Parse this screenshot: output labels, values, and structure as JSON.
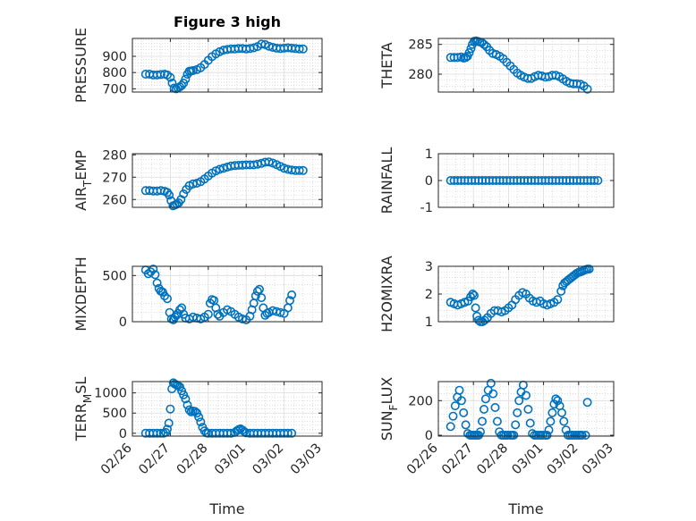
{
  "chart_data": [
    {
      "type": "scatter",
      "id": "pressure",
      "title": "Figure 3 high",
      "ylabel": "PRESSURE",
      "ylabel_sub": "",
      "ylabel_tail": "",
      "xlabel": "",
      "ylim": [
        680,
        1010
      ],
      "yticks": [
        700,
        800,
        900
      ],
      "yticklabels": [
        "700",
        "800",
        "900"
      ],
      "xlim": [
        "02/26",
        "03/03"
      ],
      "xticks": [
        "02/26",
        "02/27",
        "02/28",
        "03/01",
        "03/02",
        "03/03"
      ],
      "xticklabels": [],
      "x": [
        0.35,
        0.45,
        0.55,
        0.65,
        0.75,
        0.85,
        0.92,
        1.0,
        1.05,
        1.1,
        1.15,
        1.2,
        1.25,
        1.3,
        1.35,
        1.4,
        1.45,
        1.5,
        1.55,
        1.6,
        1.7,
        1.8,
        1.9,
        2.0,
        2.1,
        2.2,
        2.3,
        2.4,
        2.5,
        2.6,
        2.7,
        2.8,
        2.9,
        3.0,
        3.1,
        3.2,
        3.3,
        3.4,
        3.5,
        3.6,
        3.7,
        3.8,
        3.9,
        4.0,
        4.1,
        4.2,
        4.3,
        4.4,
        4.5
      ],
      "y": [
        790,
        790,
        785,
        785,
        788,
        790,
        785,
        770,
        735,
        705,
        700,
        706,
        712,
        720,
        735,
        760,
        790,
        808,
        810,
        812,
        818,
        830,
        850,
        875,
        898,
        915,
        928,
        938,
        942,
        945,
        945,
        948,
        948,
        945,
        948,
        952,
        960,
        975,
        972,
        962,
        955,
        950,
        948,
        950,
        952,
        950,
        948,
        945,
        945
      ]
    },
    {
      "type": "scatter",
      "id": "theta",
      "title": "",
      "ylabel": "THETA",
      "ylabel_sub": "",
      "ylabel_tail": "",
      "xlabel": "",
      "ylim": [
        277,
        286
      ],
      "yticks": [
        280,
        285
      ],
      "yticklabels": [
        "280",
        "285"
      ],
      "xlim": [
        "02/26",
        "03/03"
      ],
      "xticks": [
        "02/26",
        "02/27",
        "02/28",
        "03/01",
        "03/02",
        "03/03"
      ],
      "xticklabels": [],
      "x": [
        0.35,
        0.45,
        0.55,
        0.65,
        0.72,
        0.78,
        0.83,
        0.88,
        0.93,
        0.97,
        1.02,
        1.07,
        1.12,
        1.18,
        1.24,
        1.3,
        1.38,
        1.46,
        1.55,
        1.65,
        1.75,
        1.85,
        1.95,
        2.05,
        2.15,
        2.25,
        2.35,
        2.45,
        2.55,
        2.65,
        2.75,
        2.85,
        2.95,
        3.05,
        3.15,
        3.25,
        3.35,
        3.45,
        3.55,
        3.65,
        3.75,
        3.85,
        3.95,
        4.05,
        4.15,
        4.25
      ],
      "y": [
        282.8,
        282.8,
        282.8,
        282.9,
        282.7,
        282.8,
        283.0,
        283.6,
        284.3,
        285.0,
        285.5,
        285.6,
        285.5,
        285.4,
        285.3,
        285.0,
        284.6,
        284.0,
        283.5,
        283.3,
        283.0,
        282.6,
        282.0,
        281.4,
        280.8,
        280.2,
        279.8,
        279.5,
        279.3,
        279.3,
        279.6,
        279.8,
        279.7,
        279.5,
        279.6,
        279.8,
        279.8,
        279.6,
        279.2,
        278.8,
        278.5,
        278.4,
        278.4,
        278.3,
        278.0,
        277.5
      ]
    },
    {
      "type": "scatter",
      "id": "air-temp",
      "title": "",
      "ylabel": "AIR",
      "ylabel_sub": "T",
      "ylabel_tail": "EMP",
      "xlabel": "",
      "ylim": [
        256.5,
        280.5
      ],
      "yticks": [
        260,
        270,
        280
      ],
      "yticklabels": [
        "260",
        "270",
        "280"
      ],
      "xlim": [
        "02/26",
        "03/03"
      ],
      "xticks": [
        "02/26",
        "02/27",
        "02/28",
        "03/01",
        "03/02",
        "03/03"
      ],
      "xticklabels": [],
      "x": [
        0.35,
        0.45,
        0.55,
        0.65,
        0.75,
        0.85,
        0.92,
        0.97,
        1.02,
        1.07,
        1.12,
        1.17,
        1.22,
        1.28,
        1.35,
        1.42,
        1.5,
        1.6,
        1.7,
        1.8,
        1.9,
        2.0,
        2.1,
        2.2,
        2.3,
        2.4,
        2.5,
        2.6,
        2.7,
        2.8,
        2.9,
        3.0,
        3.1,
        3.2,
        3.3,
        3.4,
        3.5,
        3.6,
        3.7,
        3.8,
        3.9,
        4.0,
        4.1,
        4.2,
        4.3,
        4.4,
        4.5
      ],
      "y": [
        264,
        264,
        263.8,
        263.8,
        264,
        263.7,
        263.2,
        262,
        259.5,
        257.2,
        257.5,
        258,
        258.5,
        260,
        262.5,
        264.5,
        266.2,
        267,
        267.3,
        268,
        269.2,
        270.5,
        271.8,
        272.8,
        273.5,
        274,
        274.5,
        275,
        275.2,
        275.3,
        275.4,
        275.5,
        275.5,
        275.5,
        275.8,
        276.2,
        276.7,
        276.8,
        276.3,
        275.6,
        274.8,
        274,
        273.5,
        273.2,
        273,
        273,
        273
      ]
    },
    {
      "type": "scatter",
      "id": "rainfall",
      "title": "",
      "ylabel": "RAINFALL",
      "ylabel_sub": "",
      "ylabel_tail": "",
      "xlabel": "",
      "ylim": [
        -1,
        1
      ],
      "yticks": [
        -1,
        0,
        1
      ],
      "yticklabels": [
        "-1",
        "0",
        "1"
      ],
      "xlim": [
        "02/26",
        "03/03"
      ],
      "xticks": [
        "02/26",
        "02/27",
        "02/28",
        "03/01",
        "03/02",
        "03/03"
      ],
      "xticklabels": [],
      "x": [
        0.35,
        0.45,
        0.55,
        0.65,
        0.75,
        0.85,
        0.95,
        1.05,
        1.15,
        1.25,
        1.35,
        1.45,
        1.55,
        1.65,
        1.75,
        1.85,
        1.95,
        2.05,
        2.15,
        2.25,
        2.35,
        2.45,
        2.55,
        2.65,
        2.75,
        2.85,
        2.95,
        3.05,
        3.15,
        3.25,
        3.35,
        3.45,
        3.55,
        3.65,
        3.75,
        3.85,
        3.95,
        4.05,
        4.15,
        4.25,
        4.35,
        4.45,
        4.55
      ],
      "y": [
        0,
        0,
        0,
        0,
        0,
        0,
        0,
        0,
        0,
        0,
        0,
        0,
        0,
        0,
        0,
        0,
        0,
        0,
        0,
        0,
        0,
        0,
        0,
        0,
        0,
        0,
        0,
        0,
        0,
        0,
        0,
        0,
        0,
        0,
        0,
        0,
        0,
        0,
        0,
        0,
        0,
        0,
        0
      ]
    },
    {
      "type": "scatter",
      "id": "mixdepth",
      "title": "",
      "ylabel": "MIXDEPTH",
      "ylabel_sub": "",
      "ylabel_tail": "",
      "xlabel": "",
      "ylim": [
        0,
        600
      ],
      "yticks": [
        0,
        500
      ],
      "yticklabels": [
        "0",
        "500"
      ],
      "xlim": [
        "02/26",
        "03/03"
      ],
      "xticks": [
        "02/26",
        "02/27",
        "02/28",
        "03/01",
        "03/02",
        "03/03"
      ],
      "xticklabels": [],
      "x": [
        0.35,
        0.42,
        0.48,
        0.55,
        0.6,
        0.65,
        0.7,
        0.75,
        0.8,
        0.85,
        0.92,
        0.98,
        1.03,
        1.08,
        1.12,
        1.16,
        1.2,
        1.25,
        1.3,
        1.35,
        1.4,
        1.5,
        1.6,
        1.7,
        1.8,
        1.9,
        2.0,
        2.05,
        2.1,
        2.15,
        2.2,
        2.25,
        2.3,
        2.4,
        2.5,
        2.6,
        2.7,
        2.8,
        2.9,
        3.0,
        3.1,
        3.15,
        3.2,
        3.25,
        3.3,
        3.35,
        3.4,
        3.45,
        3.5,
        3.55,
        3.6,
        3.7,
        3.8,
        3.9,
        4.0,
        4.1,
        4.15,
        4.2
      ],
      "y": [
        560,
        520,
        540,
        570,
        510,
        420,
        360,
        330,
        320,
        280,
        250,
        100,
        30,
        20,
        50,
        70,
        90,
        130,
        150,
        80,
        40,
        30,
        50,
        40,
        30,
        50,
        80,
        200,
        240,
        230,
        150,
        80,
        60,
        100,
        130,
        110,
        80,
        50,
        30,
        20,
        60,
        130,
        200,
        280,
        330,
        350,
        260,
        150,
        70,
        90,
        100,
        120,
        110,
        100,
        90,
        150,
        230,
        290
      ]
    },
    {
      "type": "scatter",
      "id": "h2omixra",
      "title": "",
      "ylabel": "H2OMIXRA",
      "ylabel_sub": "",
      "ylabel_tail": "",
      "xlabel": "",
      "ylim": [
        1,
        3
      ],
      "yticks": [
        1,
        2,
        3
      ],
      "yticklabels": [
        "1",
        "2",
        "3"
      ],
      "xlim": [
        "02/26",
        "03/03"
      ],
      "xticks": [
        "02/26",
        "02/27",
        "02/28",
        "03/01",
        "03/02",
        "03/03"
      ],
      "xticklabels": [],
      "x": [
        0.35,
        0.45,
        0.55,
        0.65,
        0.75,
        0.85,
        0.92,
        0.98,
        1.02,
        1.06,
        1.1,
        1.15,
        1.2,
        1.26,
        1.32,
        1.4,
        1.5,
        1.6,
        1.7,
        1.8,
        1.9,
        2.0,
        2.1,
        2.2,
        2.3,
        2.4,
        2.5,
        2.6,
        2.7,
        2.8,
        2.9,
        3.0,
        3.1,
        3.2,
        3.3,
        3.4,
        3.5,
        3.55,
        3.6,
        3.65,
        3.7,
        3.75,
        3.8,
        3.85,
        3.9,
        3.95,
        4.0,
        4.05,
        4.1,
        4.15,
        4.2,
        4.25,
        4.3
      ],
      "y": [
        1.7,
        1.65,
        1.6,
        1.65,
        1.7,
        1.75,
        1.9,
        2.0,
        1.95,
        1.5,
        1.2,
        1.05,
        1.0,
        1.0,
        1.05,
        1.15,
        1.3,
        1.4,
        1.4,
        1.35,
        1.4,
        1.5,
        1.6,
        1.8,
        1.95,
        2.05,
        2.0,
        1.85,
        1.75,
        1.7,
        1.75,
        1.65,
        1.6,
        1.65,
        1.7,
        1.8,
        2.1,
        2.3,
        2.4,
        2.45,
        2.5,
        2.55,
        2.6,
        2.65,
        2.7,
        2.75,
        2.78,
        2.8,
        2.82,
        2.85,
        2.88,
        2.9,
        2.9
      ]
    },
    {
      "type": "scatter",
      "id": "terr-msl",
      "title": "",
      "ylabel": "TERR",
      "ylabel_sub": "M",
      "ylabel_tail": "SL",
      "xlabel": "Time",
      "ylim": [
        -70,
        1280
      ],
      "yticks": [
        0,
        500,
        1000
      ],
      "yticklabels": [
        "0",
        "500",
        "1000"
      ],
      "xlim": [
        "02/26",
        "03/03"
      ],
      "xticks": [
        "02/26",
        "02/27",
        "02/28",
        "03/01",
        "03/02",
        "03/03"
      ],
      "xticklabels": [
        "02/26",
        "02/27",
        "02/28",
        "03/01",
        "03/02",
        "03/03"
      ],
      "x": [
        0.35,
        0.45,
        0.55,
        0.65,
        0.75,
        0.82,
        0.88,
        0.92,
        0.96,
        1.0,
        1.04,
        1.08,
        1.12,
        1.16,
        1.2,
        1.25,
        1.3,
        1.35,
        1.4,
        1.45,
        1.5,
        1.55,
        1.6,
        1.65,
        1.7,
        1.75,
        1.8,
        1.85,
        1.9,
        1.95,
        2.0,
        2.1,
        2.2,
        2.3,
        2.4,
        2.5,
        2.6,
        2.7,
        2.75,
        2.8,
        2.85,
        2.9,
        2.95,
        3.0,
        3.1,
        3.2,
        3.3,
        3.4,
        3.5,
        3.6,
        3.7,
        3.8,
        3.9,
        4.0,
        4.1,
        4.2
      ],
      "y": [
        0,
        0,
        0,
        0,
        0,
        0,
        20,
        100,
        250,
        600,
        1100,
        1250,
        1220,
        1200,
        1180,
        1150,
        1050,
        950,
        850,
        700,
        580,
        530,
        550,
        540,
        500,
        400,
        280,
        150,
        60,
        10,
        0,
        0,
        0,
        0,
        0,
        0,
        0,
        20,
        60,
        90,
        110,
        80,
        40,
        10,
        0,
        0,
        0,
        0,
        0,
        0,
        0,
        0,
        0,
        0,
        0,
        0
      ]
    },
    {
      "type": "scatter",
      "id": "sun-flux",
      "title": "",
      "ylabel": "SUN",
      "ylabel_sub": "F",
      "ylabel_tail": "LUX",
      "xlabel": "Time",
      "ylim": [
        -5,
        310
      ],
      "yticks": [
        0,
        200
      ],
      "yticklabels": [
        "0",
        "200"
      ],
      "xlim": [
        "02/26",
        "03/03"
      ],
      "xticks": [
        "02/26",
        "02/27",
        "02/28",
        "03/01",
        "03/02",
        "03/03"
      ],
      "xticklabels": [
        "02/26",
        "02/27",
        "02/28",
        "03/01",
        "03/02",
        "03/03"
      ],
      "x": [
        0.35,
        0.42,
        0.48,
        0.54,
        0.6,
        0.66,
        0.72,
        0.78,
        0.84,
        0.9,
        0.95,
        1.0,
        1.05,
        1.1,
        1.15,
        1.2,
        1.25,
        1.3,
        1.35,
        1.42,
        1.5,
        1.56,
        1.62,
        1.68,
        1.74,
        1.8,
        1.86,
        1.92,
        1.98,
        2.05,
        2.1,
        2.15,
        2.2,
        2.25,
        2.3,
        2.36,
        2.42,
        2.5,
        2.56,
        2.62,
        2.68,
        2.74,
        2.8,
        2.86,
        2.92,
        2.98,
        3.05,
        3.1,
        3.15,
        3.2,
        3.25,
        3.3,
        3.35,
        3.4,
        3.46,
        3.52,
        3.58,
        3.64,
        3.7,
        3.76,
        3.82,
        3.88,
        3.94,
        4.0,
        4.05,
        4.1,
        4.2,
        4.25
      ],
      "y": [
        50,
        110,
        170,
        220,
        260,
        200,
        130,
        60,
        10,
        0,
        0,
        0,
        0,
        0,
        0,
        20,
        80,
        150,
        210,
        260,
        300,
        240,
        160,
        80,
        20,
        0,
        0,
        0,
        0,
        0,
        0,
        0,
        60,
        130,
        200,
        250,
        290,
        230,
        150,
        70,
        10,
        0,
        0,
        0,
        0,
        0,
        0,
        0,
        30,
        80,
        130,
        180,
        210,
        200,
        170,
        130,
        80,
        30,
        0,
        0,
        0,
        0,
        0,
        0,
        0,
        0,
        0,
        190
      ]
    }
  ]
}
